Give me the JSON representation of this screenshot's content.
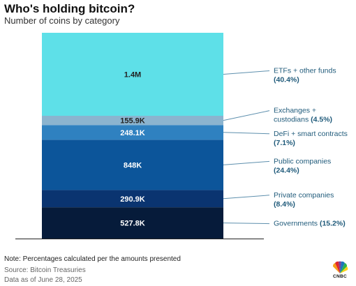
{
  "header": {
    "title": "Who's holding bitcoin?",
    "subtitle": "Number of coins by category"
  },
  "footer": {
    "note": "Note: Percentages calculated per the amounts presented",
    "source": "Source: Bitcoin Treasuries",
    "as_of": "Data as of June 28, 2025",
    "logo_text": "CNBC"
  },
  "chart_data": {
    "type": "bar",
    "stacked": true,
    "title": "Who's holding bitcoin?",
    "subtitle": "Number of coins by category",
    "unit": "coins",
    "segments": [
      {
        "category_lines": [
          "Governments"
        ],
        "pct_label": "(15.2%)",
        "pct_inline": true,
        "value": 527800,
        "label": "527.8K",
        "color": "#061b3a",
        "text_color": "#ffffff"
      },
      {
        "category_lines": [
          "Private companies"
        ],
        "pct_label": "(8.4%)",
        "pct_inline": false,
        "value": 290900,
        "label": "290.9K",
        "color": "#0a3470",
        "text_color": "#ffffff"
      },
      {
        "category_lines": [
          "Public companies"
        ],
        "pct_label": "(24.4%)",
        "pct_inline": false,
        "value": 848000,
        "label": "848K",
        "color": "#0c559a",
        "text_color": "#ffffff"
      },
      {
        "category_lines": [
          "DeFi + smart contracts"
        ],
        "pct_label": "(7.1%)",
        "pct_inline": false,
        "value": 248100,
        "label": "248.1K",
        "color": "#2f81c0",
        "text_color": "#ffffff"
      },
      {
        "category_lines": [
          "Exchanges +",
          "custodians"
        ],
        "pct_label": "(4.5%)",
        "pct_inline": true,
        "value": 155900,
        "label": "155.9K",
        "color": "#8bb4cf",
        "text_color": "#222222"
      },
      {
        "category_lines": [
          "ETFs + other funds"
        ],
        "pct_label": "(40.4%)",
        "pct_inline": false,
        "value": 1400000,
        "label": "1.4M",
        "color": "#5ee0e8",
        "text_color": "#222222"
      }
    ],
    "legend_position": "right",
    "colors": {
      "connector": "#5d8fad",
      "label_text": "#1f5a7a",
      "baseline": "#222222"
    }
  }
}
